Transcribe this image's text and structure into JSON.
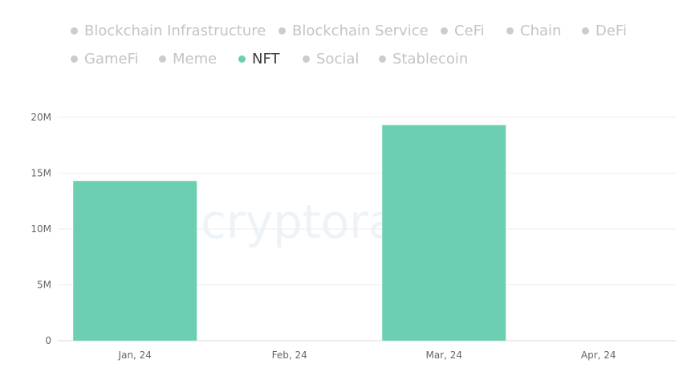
{
  "legend": {
    "items": [
      {
        "label": "Blockchain Infrastructure",
        "active": false
      },
      {
        "label": "Blockchain Service",
        "active": false
      },
      {
        "label": "CeFi",
        "active": false
      },
      {
        "label": "Chain",
        "active": false
      },
      {
        "label": "DeFi",
        "active": false
      },
      {
        "label": "GameFi",
        "active": false
      },
      {
        "label": "Meme",
        "active": false
      },
      {
        "label": "NFT",
        "active": true
      },
      {
        "label": "Social",
        "active": false
      },
      {
        "label": "Stablecoin",
        "active": false
      }
    ]
  },
  "watermark": "cryptorank",
  "chart_data": {
    "type": "bar",
    "categories": [
      "Jan, 24",
      "Feb, 24",
      "Mar, 24",
      "Apr, 24"
    ],
    "series": [
      {
        "name": "NFT",
        "color": "#6ccfb2",
        "values": [
          14300000,
          0,
          19300000,
          0
        ]
      }
    ],
    "ylim": [
      0,
      20000000
    ],
    "yticks": [
      {
        "value": 0,
        "label": "0"
      },
      {
        "value": 5000000,
        "label": "5M"
      },
      {
        "value": 10000000,
        "label": "10M"
      },
      {
        "value": 15000000,
        "label": "15M"
      },
      {
        "value": 20000000,
        "label": "20M"
      }
    ],
    "grid": true,
    "legend_position": "top"
  }
}
